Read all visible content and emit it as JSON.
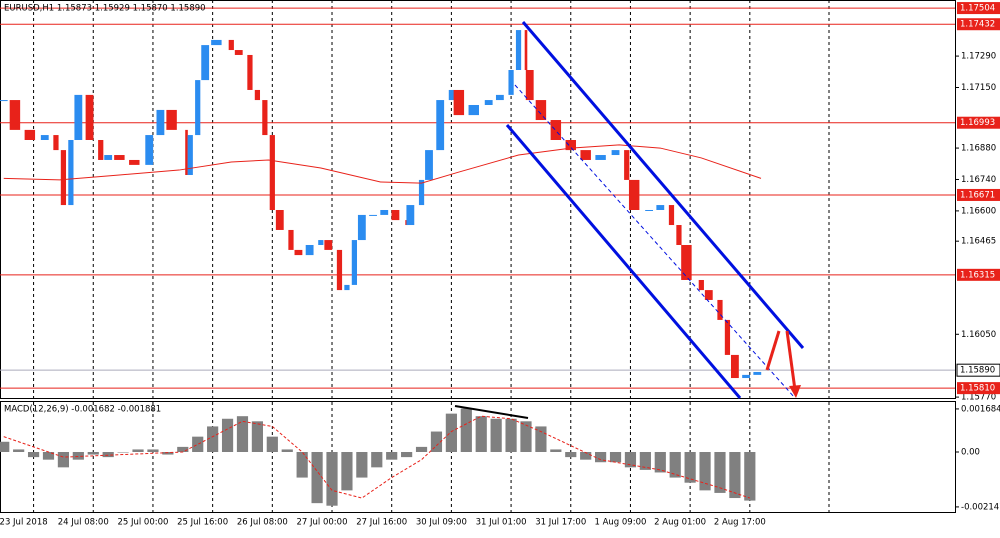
{
  "chart_data": {
    "type": "candlestick",
    "title": "EURUSD,H1  1.15873 1.15929 1.15870 1.15890",
    "xlim": [
      0,
      256
    ],
    "xticks": [
      {
        "value": 9,
        "label": "23 Jul 2018"
      },
      {
        "value": 25,
        "label": "24 Jul 08:00"
      },
      {
        "value": 41,
        "label": "25 Jul 00:00"
      },
      {
        "value": 57,
        "label": "25 Jul 16:00"
      },
      {
        "value": 73,
        "label": "26 Jul 08:00"
      },
      {
        "value": 89,
        "label": "27 Jul 00:00"
      },
      {
        "value": 105,
        "label": "27 Jul 16:00"
      },
      {
        "value": 121,
        "label": "30 Jul 09:00"
      },
      {
        "value": 137,
        "label": "31 Jul 01:00"
      },
      {
        "value": 153,
        "label": "31 Jul 17:00"
      },
      {
        "value": 169,
        "label": "1 Aug 09:00"
      },
      {
        "value": 185,
        "label": "2 Aug 01:00"
      },
      {
        "value": 201,
        "label": "2 Aug 17:00"
      }
    ],
    "ylim": [
      1.15766,
      1.1754
    ],
    "yticks": [
      {
        "value": 1.1729,
        "label": "1.17290"
      },
      {
        "value": 1.1715,
        "label": "1.17150"
      },
      {
        "value": 1.1688,
        "label": "1.16880"
      },
      {
        "value": 1.1674,
        "label": "1.16740"
      },
      {
        "value": 1.166,
        "label": "1.16600"
      },
      {
        "value": 1.16465,
        "label": "1.16465"
      },
      {
        "value": 1.1605,
        "label": "1.16050"
      },
      {
        "value": 1.1577,
        "label": "1.15770"
      }
    ],
    "levels": [
      {
        "value": 1.17504,
        "label": "1.17504"
      },
      {
        "value": 1.17432,
        "label": "1.17432"
      },
      {
        "value": 1.16993,
        "label": "1.16993"
      },
      {
        "value": 1.16671,
        "label": "1.16671"
      },
      {
        "value": 1.16315,
        "label": "1.16315"
      },
      {
        "value": 1.1581,
        "label": "1.15810"
      }
    ],
    "level_color": "#e8221a",
    "current": {
      "value": 1.1589,
      "label": "1.15890"
    },
    "candles": {
      "x": [
        1,
        4,
        8,
        12,
        15,
        17,
        19,
        21,
        24,
        27,
        29,
        32,
        36,
        40,
        43,
        46,
        50,
        51,
        53,
        55,
        58,
        62,
        64,
        67,
        69,
        71,
        73,
        75,
        78,
        80,
        83,
        86,
        88,
        91,
        93,
        95,
        97,
        100,
        103,
        106,
        109,
        110,
        113,
        115,
        118,
        121,
        123,
        127,
        131,
        134,
        137,
        139,
        141,
        142,
        145,
        149,
        153,
        157,
        161,
        165,
        168,
        170,
        174,
        177,
        180,
        182,
        184,
        188,
        190,
        193,
        195,
        197,
        200,
        203
      ],
      "close": [
        1.17094,
        1.16961,
        1.16916,
        1.16938,
        1.16871,
        1.16626,
        1.16916,
        1.17117,
        1.16916,
        1.16827,
        1.16849,
        1.16827,
        1.16805,
        1.16938,
        1.1705,
        1.16961,
        1.1676,
        1.16938,
        1.17183,
        1.17339,
        1.17362,
        1.17317,
        1.17295,
        1.17139,
        1.17094,
        1.16938,
        1.16604,
        1.16515,
        1.16426,
        1.16403,
        1.16448,
        1.1647,
        1.16426,
        1.16247,
        1.1627,
        1.1647,
        1.16582,
        1.16582,
        1.16604,
        1.16559,
        1.16537,
        1.16626,
        1.16738,
        1.16871,
        1.17094,
        1.17139,
        1.17027,
        1.17072,
        1.17094,
        1.17117,
        1.17228,
        1.17406,
        1.17228,
        1.17094,
        1.17005,
        1.16916,
        1.16871,
        1.16827,
        1.16849,
        1.16871,
        1.16738,
        1.16604,
        1.16604,
        1.16626,
        1.16537,
        1.16448,
        1.16292,
        1.16247,
        1.16203,
        1.16114,
        1.15958,
        1.15855,
        1.15869,
        1.15882
      ],
      "up_color": "#2b8cf0",
      "down_color": "#e8221a"
    },
    "ma": {
      "x": [
        1,
        16,
        32,
        48,
        62,
        72,
        86,
        102,
        113,
        123,
        139,
        153,
        166,
        177,
        188,
        204
      ],
      "values": [
        1.16745,
        1.16738,
        1.1676,
        1.16782,
        1.16818,
        1.16827,
        1.16791,
        1.16729,
        1.16724,
        1.16773,
        1.16849,
        1.1688,
        1.16894,
        1.1688,
        1.16836,
        1.16745
      ],
      "color": "#e8221a"
    },
    "macd": {
      "title": "MACD(12,26,9) -0.001682 -0.001881",
      "ylim": [
        -0.002346,
        0.001955
      ],
      "yticks": [
        0.001684,
        {
          "value": 0,
          "label": "0.00"
        },
        -0.002147
      ],
      "histogram": {
        "x": [
          1,
          5,
          9,
          13,
          17,
          21,
          25,
          29,
          33,
          37,
          41,
          45,
          49,
          53,
          57,
          61,
          65,
          69,
          73,
          77,
          81,
          85,
          89,
          93,
          97,
          101,
          105,
          109,
          113,
          117,
          121,
          125,
          129,
          133,
          137,
          141,
          145,
          149,
          153,
          157,
          161,
          165,
          169,
          173,
          177,
          181,
          185,
          189,
          193,
          197,
          201
        ],
        "values": [
          0.0004,
          0.0001,
          -0.0002,
          -0.0003,
          -0.0006,
          -0.0003,
          -0.0001,
          -0.0002,
          0,
          0.0001,
          0.0001,
          -0.0001,
          0.0002,
          0.0006,
          0.001,
          0.0013,
          0.0014,
          0.0012,
          0.0006,
          0.0001,
          -0.001,
          -0.002,
          -0.0021,
          -0.0015,
          -0.001,
          -0.0006,
          -0.0003,
          -0.0002,
          0.0002,
          0.0008,
          0.0015,
          0.0017,
          0.0014,
          0.0013,
          0.0013,
          0.0012,
          0.001,
          0.0001,
          -0.0002,
          -0.0003,
          -0.0004,
          -0.0004,
          -0.0006,
          -0.0007,
          -0.0008,
          -0.001,
          -0.0012,
          -0.0015,
          -0.0016,
          -0.0018,
          -0.0019
        ],
        "color": "#808080"
      },
      "signal": {
        "x": [
          1,
          17,
          33,
          49,
          57,
          65,
          73,
          81,
          89,
          97,
          105,
          113,
          121,
          129,
          137,
          145,
          161,
          177,
          193,
          201
        ],
        "values": [
          0.0006,
          -0.0002,
          -0.0001,
          0,
          0.0006,
          0.0012,
          0.001,
          0,
          -0.0015,
          -0.0018,
          -0.001,
          -0.0003,
          0.0008,
          0.0014,
          0.0013,
          0.0008,
          -0.0003,
          -0.0007,
          -0.0014,
          -0.0018
        ],
        "color": "#e8221a"
      }
    }
  }
}
